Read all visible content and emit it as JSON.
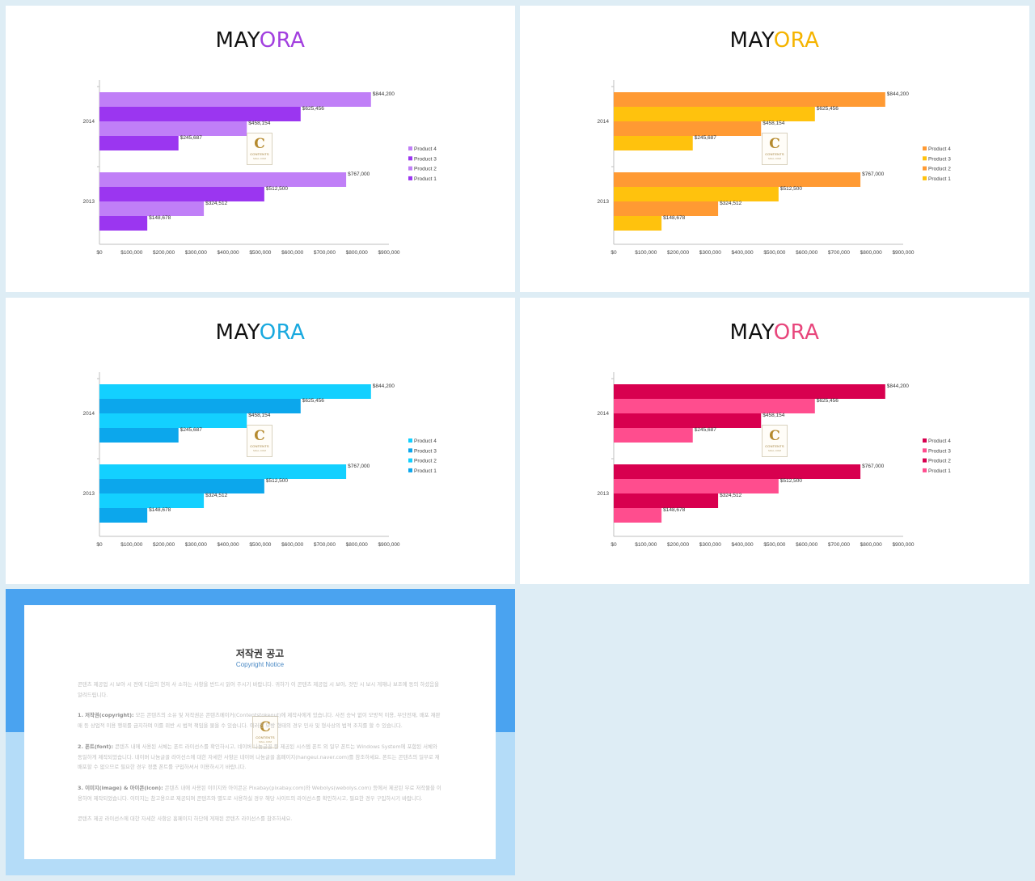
{
  "slides": [
    {
      "id": "purple",
      "title_a": "MAY",
      "title_b": "ORA",
      "title_b_color": "#a23fdf",
      "colors": {
        "Product 1": "#9b36f0",
        "Product 2": "#c07ff7",
        "Product 3": "#9b36f0",
        "Product 4": "#c07ff7"
      }
    },
    {
      "id": "orange",
      "title_a": "MAY",
      "title_b": "ORA",
      "title_b_color": "#f5b400",
      "colors": {
        "Product 1": "#ffc20d",
        "Product 2": "#ff9a33",
        "Product 3": "#ffc20d",
        "Product 4": "#ff9a33"
      }
    },
    {
      "id": "cyan",
      "title_a": "MAY",
      "title_b": "ORA",
      "title_b_color": "#19a9df",
      "colors": {
        "Product 1": "#0ca7ec",
        "Product 2": "#13d0ff",
        "Product 3": "#0ca7ec",
        "Product 4": "#13d0ff"
      }
    },
    {
      "id": "pink",
      "title_a": "MAY",
      "title_b": "ORA",
      "title_b_color": "#e8467c",
      "colors": {
        "Product 1": "#ff4d8e",
        "Product 2": "#d8004f",
        "Product 3": "#ff4d8e",
        "Product 4": "#d8004f"
      }
    }
  ],
  "chart_data": {
    "type": "bar",
    "orientation": "horizontal",
    "categories": [
      "2014",
      "2013"
    ],
    "series": [
      {
        "name": "Product 4",
        "values": [
          844200,
          767000
        ],
        "labels": [
          "$844,200",
          "$767,000"
        ]
      },
      {
        "name": "Product 3",
        "values": [
          625456,
          512500
        ],
        "labels": [
          "$625,456",
          "$512,500"
        ]
      },
      {
        "name": "Product 2",
        "values": [
          458154,
          324512
        ],
        "labels": [
          "$458,154",
          "$324,512"
        ]
      },
      {
        "name": "Product 1",
        "values": [
          245687,
          148678
        ],
        "labels": [
          "$245,687",
          "$148,678"
        ]
      }
    ],
    "xlim": [
      0,
      900000
    ],
    "xticks": [
      {
        "value": 0,
        "label": "$0"
      },
      {
        "value": 100000,
        "label": "$100,000"
      },
      {
        "value": 200000,
        "label": "$200,000"
      },
      {
        "value": 300000,
        "label": "$300,000"
      },
      {
        "value": 400000,
        "label": "$400,000"
      },
      {
        "value": 500000,
        "label": "$500,000"
      },
      {
        "value": 600000,
        "label": "$600,000"
      },
      {
        "value": 700000,
        "label": "$700,000"
      },
      {
        "value": 800000,
        "label": "$800,000"
      },
      {
        "value": 900000,
        "label": "$900,000"
      }
    ],
    "legend": [
      "Product 4",
      "Product 3",
      "Product 2",
      "Product 1"
    ],
    "legend_position": "right",
    "grid": false
  },
  "watermark": {
    "letter": "C",
    "text": "CONTENTS",
    "sub": "MALL.COM"
  },
  "copyright": {
    "title": "저작권 공고",
    "subtitle": "Copyright Notice",
    "intro": "콘텐츠 제공업 시 보아 시 전에 다음의 현저 사 소하는 사항을 반드시 읽어 주시기 바랍니다. 귀하가 이 콘텐츠 제공업 시 보아, 것만 시 보시 게재나 보조에 동의 하셨음을 알려드립니다.",
    "s1_head": "1. 저작권(copyright):",
    "s1_body": " 모든 콘텐츠의 소유 및 저작권은 콘텐츠메이커(Contentstokeout)에 제작사에게 있습니다. 사전 승낙 없이 모방적 이용, 무단전재, 배포 재판매 등 상업적 이용 행위를 금지하며 이를 위반 시 법적 책임을 물을 수 있습니다. 이러한 모방 형태의 경우 민사 및 형사상의 법적 조치를 할 수 있습니다.",
    "s2_head": "2. 폰트(font):",
    "s2_body": " 콘텐츠 내에 사용된 서체는 폰트 라이선스를 확인하시고, 네이버 나눔글꼴 등 제공된 시스템 폰트 외 일부 폰트는 Windows System에 포함된 서체와 동일하게 제작되었습니다. 네이버 나눔글꼴 라이선스에 대한 자세한 사항은 네이버 나눔글꼴 홈페이지(hangeul.naver.com)를 참조하세요. 폰트는 콘텐츠의 일부로 재배포할 수 없으므로 필요한 경우 정품 폰트를 구입하셔서 이용하시기 바랍니다.",
    "s3_head": "3. 이미지(image) & 아이콘(icon):",
    "s3_body": " 콘텐츠 내에 사용된 이미지와 아이콘은 Pixabay(pixabay.com)와 Webolys(webolys.com) 등에서 제공된 무료 저작물을 이용하여 제작되었습니다. 이미지는 참고용으로 제공되며 콘텐츠와 별도로 사용하실 경우 해당 사이트의 라이선스를 확인하시고, 필요한 경우 구입하시기 바랍니다.",
    "outro": "콘텐츠 제공 라이선스에 대한 자세한 사항은 홈페이지 하단에 게재된 콘텐츠 라이선스를 참조하세요."
  }
}
